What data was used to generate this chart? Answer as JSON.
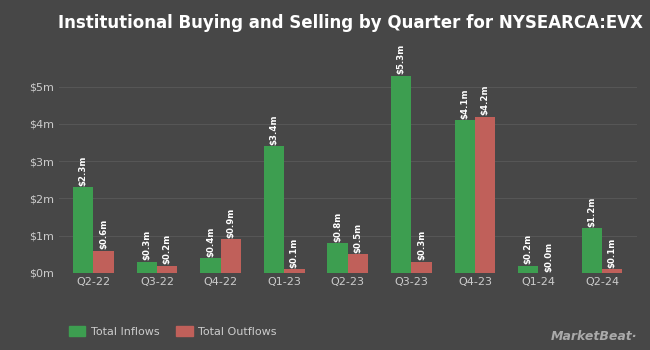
{
  "title": "Institutional Buying and Selling by Quarter for NYSEARCA:EVX",
  "categories": [
    "Q2-22",
    "Q3-22",
    "Q4-22",
    "Q1-23",
    "Q2-23",
    "Q3-23",
    "Q4-23",
    "Q1-24",
    "Q2-24"
  ],
  "inflows": [
    2.3,
    0.3,
    0.4,
    3.4,
    0.8,
    5.3,
    4.1,
    0.2,
    1.2
  ],
  "outflows": [
    0.6,
    0.2,
    0.9,
    0.1,
    0.5,
    0.3,
    4.2,
    0.0,
    0.1
  ],
  "inflow_labels": [
    "$2.3m",
    "$0.3m",
    "$0.4m",
    "$3.4m",
    "$0.8m",
    "$5.3m",
    "$4.1m",
    "$0.2m",
    "$1.2m"
  ],
  "outflow_labels": [
    "$0.6m",
    "$0.2m",
    "$0.9m",
    "$0.1m",
    "$0.5m",
    "$0.3m",
    "$4.2m",
    "$0.0m",
    "$0.1m"
  ],
  "inflow_color": "#3d9e50",
  "outflow_color": "#c0605a",
  "background_color": "#474747",
  "grid_color": "#5a5a5a",
  "text_color": "#cccccc",
  "label_color": "#ffffff",
  "bar_width": 0.32,
  "ylim": [
    0,
    6.2
  ],
  "yticks": [
    0,
    1,
    2,
    3,
    4,
    5
  ],
  "ytick_labels": [
    "$0m",
    "$1m",
    "$2m",
    "$3m",
    "$4m",
    "$5m"
  ],
  "legend_inflow": "Total Inflows",
  "legend_outflow": "Total Outflows",
  "title_fontsize": 12,
  "tick_fontsize": 8,
  "label_fontsize": 6.2,
  "watermark": "⫽MarketBeat·"
}
